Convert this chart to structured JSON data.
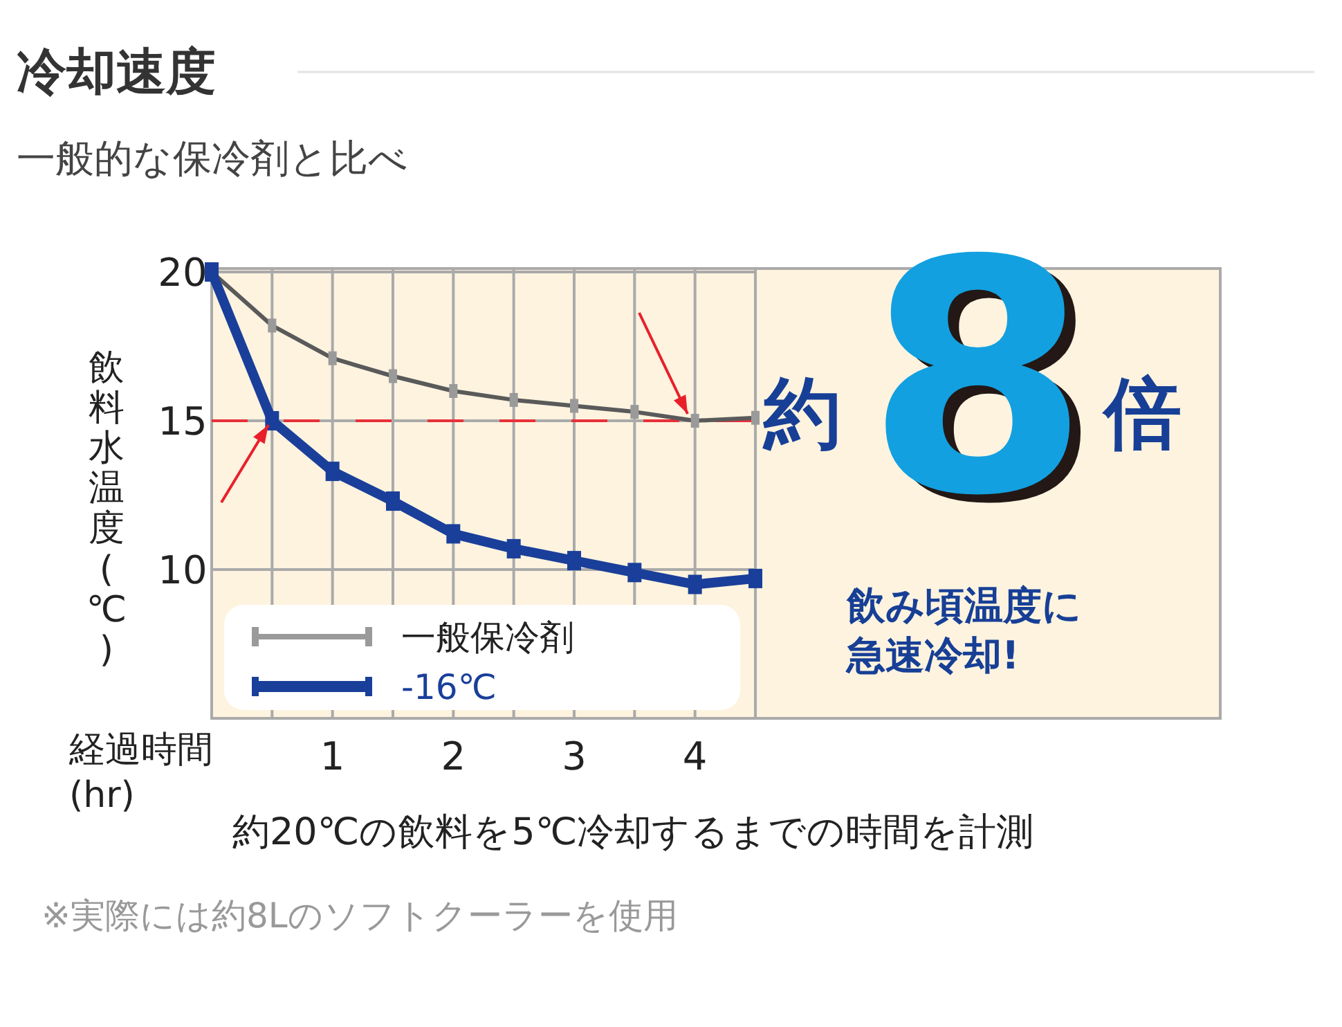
{
  "chart_data": {
    "type": "line",
    "title": "冷却速度",
    "subtitle": "一般的な保冷剤と比べ",
    "xlabel": "経過時間 (hr)",
    "ylabel": "飲料水温度(℃)",
    "x": [
      0,
      0.5,
      1,
      1.5,
      2,
      2.5,
      3,
      3.5,
      4,
      4.5
    ],
    "series": [
      {
        "name": "一般保冷剤",
        "color": "#5a5a5a",
        "values": [
          20,
          18.2,
          17.1,
          16.5,
          16.0,
          15.7,
          15.5,
          15.3,
          15.0,
          15.1
        ]
      },
      {
        "name": "-16℃",
        "color": "#1a3f9a",
        "values": [
          20,
          15.0,
          13.3,
          12.3,
          11.2,
          10.7,
          10.3,
          9.9,
          9.5,
          9.7
        ]
      }
    ],
    "xlim": [
      0,
      4.5
    ],
    "ylim": [
      5,
      20
    ],
    "xticks": [
      {
        "value": 0.5,
        "label": null
      },
      1,
      {
        "value": 1.5,
        "label": null
      },
      2,
      {
        "value": 2.5,
        "label": null
      },
      3,
      {
        "value": 3.5,
        "label": null
      },
      4,
      {
        "value": 4.5,
        "label": null
      }
    ],
    "yticks": [
      10,
      15,
      20
    ],
    "grid": true,
    "legend": "bottom left",
    "marker": "square",
    "line_style": "solid",
    "ref_lines": [
      {
        "axis": "y",
        "value": 15,
        "color": "#e8303a",
        "line_style": "dashed"
      }
    ],
    "annotations": [
      "約",
      "8",
      "倍",
      "飲み頃温度に急速冷却!",
      "約20℃の飲料を5℃冷却するまでの時間を計測",
      "※実際には約8Lのソフトクーラーを使用"
    ]
  }
}
